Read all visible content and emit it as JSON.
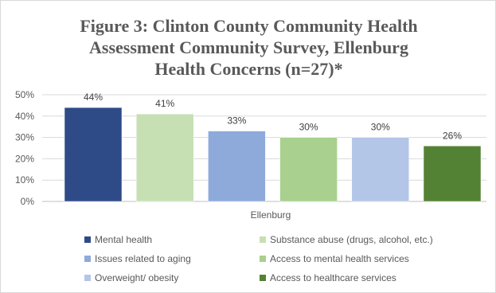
{
  "chart_data": {
    "type": "bar",
    "title": "Figure 3: Clinton County Community Health Assessment Community Survey, Ellenburg Health Concerns (n=27)*",
    "title_lines": [
      "Figure 3: Clinton County Community Health",
      "Assessment Community Survey, Ellenburg",
      "Health Concerns (n=27)*"
    ],
    "categories": [
      "Ellenburg"
    ],
    "xlabel": "",
    "ylabel": "",
    "ylim": [
      0,
      50
    ],
    "y_ticks": [
      0,
      10,
      20,
      30,
      40,
      50
    ],
    "y_tick_labels": [
      "0%",
      "10%",
      "20%",
      "30%",
      "40%",
      "50%"
    ],
    "grid": true,
    "legend_position": "bottom",
    "series": [
      {
        "name": "Mental health",
        "values": [
          44
        ],
        "label": "44%",
        "color": "#2f4b87"
      },
      {
        "name": "Substance abuse (drugs, alcohol, etc.)",
        "values": [
          41
        ],
        "label": "41%",
        "color": "#c6e0b4"
      },
      {
        "name": "Issues related to aging",
        "values": [
          33
        ],
        "label": "33%",
        "color": "#8eaadb"
      },
      {
        "name": "Access to mental health services",
        "values": [
          30
        ],
        "label": "30%",
        "color": "#a9d08e"
      },
      {
        "name": "Overweight/ obesity",
        "values": [
          30
        ],
        "label": "30%",
        "color": "#b4c6e7"
      },
      {
        "name": "Access to healthcare services",
        "values": [
          26
        ],
        "label": "26%",
        "color": "#548235"
      }
    ]
  }
}
